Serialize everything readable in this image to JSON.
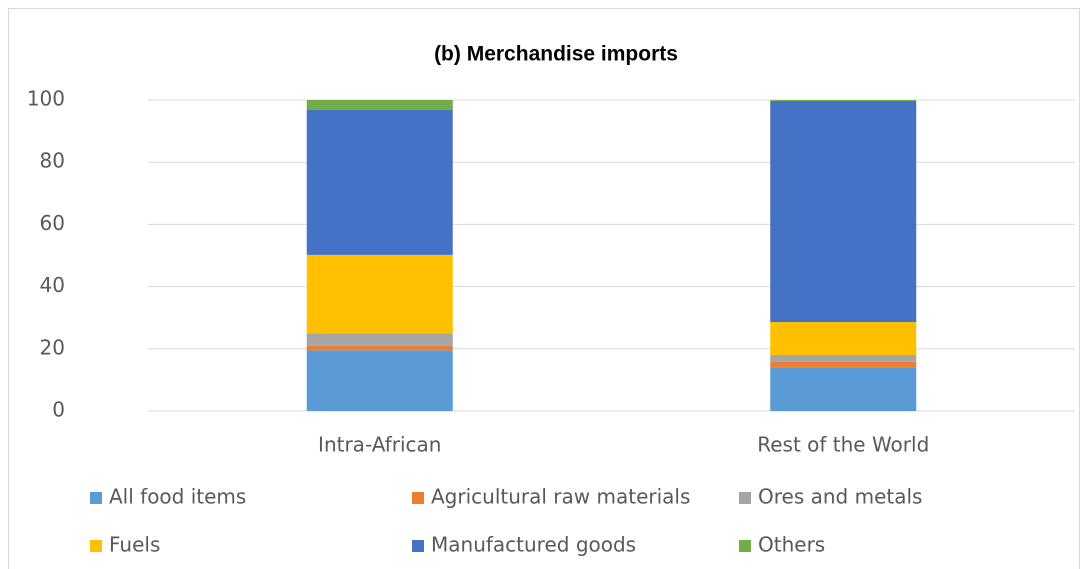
{
  "chart_data": {
    "type": "stacked_bar",
    "title": "(b) Merchandise imports",
    "categories": [
      "Intra-African",
      "Rest of the World"
    ],
    "series": [
      {
        "name": "All food items",
        "color": "#5b9bd5",
        "values": [
          19.5,
          14.1
        ]
      },
      {
        "name": "Agricultural raw materials",
        "color": "#ed7d31",
        "values": [
          1.5,
          1.7
        ]
      },
      {
        "name": "Ores and metals",
        "color": "#a5a5a5",
        "values": [
          4,
          2.2
        ]
      },
      {
        "name": "Fuels",
        "color": "#ffc000",
        "values": [
          25.2,
          10.6
        ]
      },
      {
        "name": "Manufactured goods",
        "color": "#4472c4",
        "values": [
          46.6,
          71.1
        ]
      },
      {
        "name": "Others",
        "color": "#70ad47",
        "values": [
          3.2,
          0.3
        ]
      }
    ],
    "ylim": [
      0,
      100
    ],
    "yticks": [
      0,
      20,
      40,
      60,
      80,
      100
    ],
    "grid": true
  }
}
